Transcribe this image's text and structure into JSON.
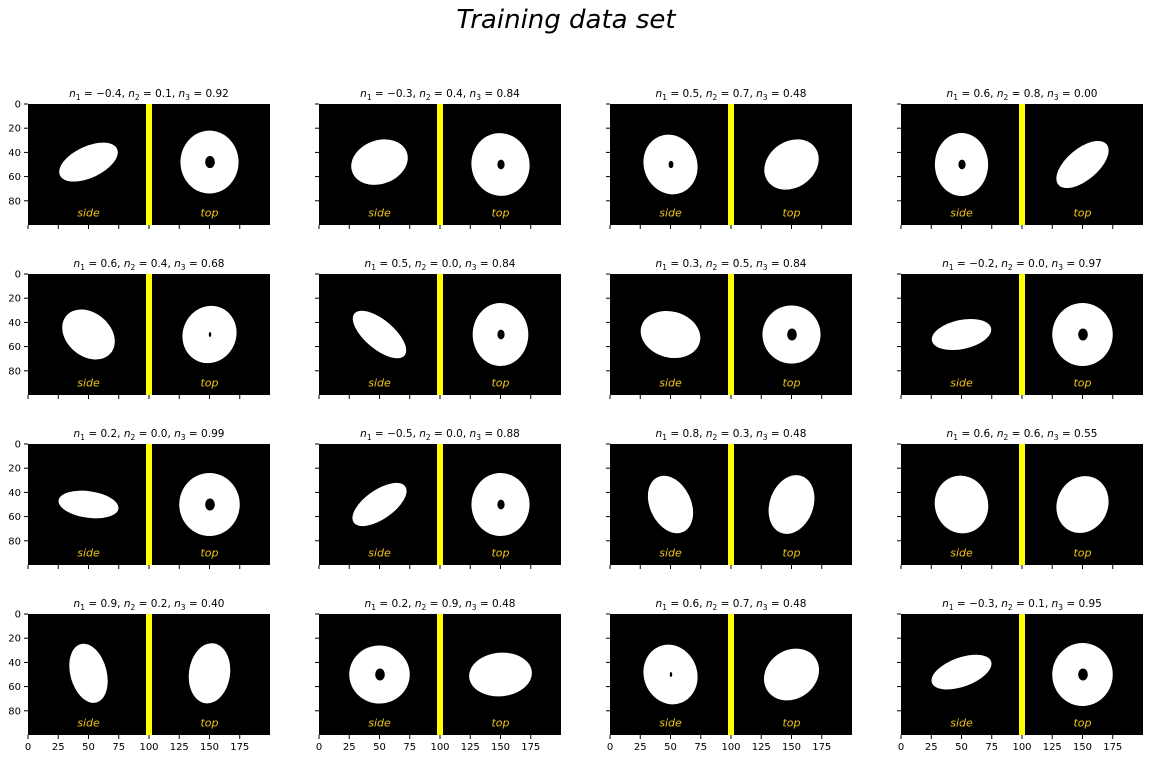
{
  "figure": {
    "suptitle": "Training data set"
  },
  "chart_data": {
    "type": "image-grid",
    "title": "Training data set",
    "rows": 4,
    "cols": 4,
    "image_width": 200,
    "image_height": 100,
    "xlim": [
      0,
      200
    ],
    "ylim": [
      100,
      0
    ],
    "xticks": [
      0,
      25,
      50,
      75,
      100,
      125,
      150,
      175
    ],
    "yticks": [
      0,
      20,
      40,
      60,
      80
    ],
    "xtick_labels_shown_on": "bottom row",
    "ytick_labels_shown_on": "left column",
    "background_color": "#000000",
    "divider": {
      "x": 100,
      "color": "#ffff00"
    },
    "annotations": {
      "left": "side",
      "right": "top",
      "color": "#f0c419"
    },
    "panels": [
      {
        "title": "$n_1 = -0.4, n_2 = 0.1, n_3 = 0.92$",
        "n1": -0.4,
        "n2": 0.1,
        "n3": 0.92,
        "side": {
          "cx": 50,
          "cy": 48,
          "rx": 26,
          "ry": 13,
          "angle": 25
        },
        "top": {
          "cx": 150,
          "cy": 48,
          "rx": 24,
          "ry": 26,
          "angle": 0,
          "hole": 4
        }
      },
      {
        "title": "$n_1 = -0.3, n_2 = 0.4, n_3 = 0.84$",
        "n1": -0.3,
        "n2": 0.4,
        "n3": 0.84,
        "side": {
          "cx": 50,
          "cy": 48,
          "rx": 24,
          "ry": 18,
          "angle": 20
        },
        "top": {
          "cx": 150,
          "cy": 50,
          "rx": 24,
          "ry": 26,
          "angle": 10,
          "hole": 3
        }
      },
      {
        "title": "$n_1 = 0.5, n_2 = 0.7, n_3 = 0.48$",
        "n1": 0.5,
        "n2": 0.7,
        "n3": 0.48,
        "side": {
          "cx": 50,
          "cy": 50,
          "rx": 22,
          "ry": 25,
          "angle": 20,
          "hole": 2
        },
        "top": {
          "cx": 150,
          "cy": 50,
          "rx": 24,
          "ry": 19,
          "angle": 35
        }
      },
      {
        "title": "$n_1 = 0.6, n_2 = 0.8, n_3 = 0.00$",
        "n1": 0.6,
        "n2": 0.8,
        "n3": 0.0,
        "side": {
          "cx": 50,
          "cy": 50,
          "rx": 22,
          "ry": 26,
          "angle": 0,
          "hole": 3
        },
        "top": {
          "cx": 150,
          "cy": 50,
          "rx": 26,
          "ry": 13,
          "angle": 40
        }
      },
      {
        "title": "$n_1 = 0.6, n_2 = 0.4, n_3 = 0.68$",
        "n1": 0.6,
        "n2": 0.4,
        "n3": 0.68,
        "side": {
          "cx": 50,
          "cy": 50,
          "rx": 24,
          "ry": 18,
          "angle": -40
        },
        "top": {
          "cx": 150,
          "cy": 50,
          "rx": 22,
          "ry": 24,
          "angle": -25,
          "hole": 1
        }
      },
      {
        "title": "$n_1 = 0.5, n_2 = 0.0, n_3 = 0.84$",
        "n1": 0.5,
        "n2": 0.0,
        "n3": 0.84,
        "side": {
          "cx": 50,
          "cy": 50,
          "rx": 27,
          "ry": 12,
          "angle": -40
        },
        "top": {
          "cx": 150,
          "cy": 50,
          "rx": 23,
          "ry": 26,
          "angle": 0,
          "hole": 3
        }
      },
      {
        "title": "$n_1 = 0.3, n_2 = 0.5, n_3 = 0.84$",
        "n1": 0.3,
        "n2": 0.5,
        "n3": 0.84,
        "side": {
          "cx": 50,
          "cy": 50,
          "rx": 25,
          "ry": 19,
          "angle": -15
        },
        "top": {
          "cx": 150,
          "cy": 50,
          "rx": 24,
          "ry": 24,
          "angle": 0,
          "hole": 4
        }
      },
      {
        "title": "$n_1 = -0.2, n_2 = 0.0, n_3 = 0.97$",
        "n1": -0.2,
        "n2": 0.0,
        "n3": 0.97,
        "side": {
          "cx": 50,
          "cy": 50,
          "rx": 25,
          "ry": 12,
          "angle": 12
        },
        "top": {
          "cx": 150,
          "cy": 50,
          "rx": 25,
          "ry": 26,
          "angle": 0,
          "hole": 4
        }
      },
      {
        "title": "$n_1 = 0.2, n_2 = 0.0, n_3 = 0.99$",
        "n1": 0.2,
        "n2": 0.0,
        "n3": 0.99,
        "side": {
          "cx": 50,
          "cy": 50,
          "rx": 25,
          "ry": 11,
          "angle": -8
        },
        "top": {
          "cx": 150,
          "cy": 50,
          "rx": 25,
          "ry": 26,
          "angle": 0,
          "hole": 4
        }
      },
      {
        "title": "$n_1 = -0.5, n_2 = 0.0, n_3 = 0.88$",
        "n1": -0.5,
        "n2": 0.0,
        "n3": 0.88,
        "side": {
          "cx": 50,
          "cy": 50,
          "rx": 26,
          "ry": 12,
          "angle": 35
        },
        "top": {
          "cx": 150,
          "cy": 50,
          "rx": 24,
          "ry": 26,
          "angle": 0,
          "hole": 3
        }
      },
      {
        "title": "$n_1 = 0.8, n_2 = 0.3, n_3 = 0.48$",
        "n1": 0.8,
        "n2": 0.3,
        "n3": 0.48,
        "side": {
          "cx": 50,
          "cy": 50,
          "rx": 17,
          "ry": 25,
          "angle": 25
        },
        "top": {
          "cx": 150,
          "cy": 50,
          "rx": 18,
          "ry": 25,
          "angle": -20
        }
      },
      {
        "title": "$n_1 = 0.6, n_2 = 0.6, n_3 = 0.55$",
        "n1": 0.6,
        "n2": 0.6,
        "n3": 0.55,
        "side": {
          "cx": 50,
          "cy": 50,
          "rx": 22,
          "ry": 24,
          "angle": 15
        },
        "top": {
          "cx": 150,
          "cy": 50,
          "rx": 21,
          "ry": 24,
          "angle": -25
        }
      },
      {
        "title": "$n_1 = 0.9, n_2 = 0.2, n_3 = 0.40$",
        "n1": 0.9,
        "n2": 0.2,
        "n3": 0.4,
        "side": {
          "cx": 50,
          "cy": 49,
          "rx": 15,
          "ry": 25,
          "angle": 15
        },
        "top": {
          "cx": 150,
          "cy": 49,
          "rx": 17,
          "ry": 25,
          "angle": -8
        }
      },
      {
        "title": "$n_1 = 0.2, n_2 = 0.9, n_3 = 0.48$",
        "n1": 0.2,
        "n2": 0.9,
        "n3": 0.48,
        "side": {
          "cx": 50,
          "cy": 50,
          "rx": 25,
          "ry": 24,
          "angle": 0,
          "hole": 4
        },
        "top": {
          "cx": 150,
          "cy": 50,
          "rx": 26,
          "ry": 18,
          "angle": 5
        }
      },
      {
        "title": "$n_1 = 0.6, n_2 = 0.7, n_3 = 0.48$",
        "n1": 0.6,
        "n2": 0.7,
        "n3": 0.48,
        "side": {
          "cx": 50,
          "cy": 50,
          "rx": 22,
          "ry": 25,
          "angle": 20,
          "hole": 1
        },
        "top": {
          "cx": 150,
          "cy": 50,
          "rx": 24,
          "ry": 20,
          "angle": 35
        }
      },
      {
        "title": "$n_1 = -0.3, n_2 = 0.1, n_3 = 0.95$",
        "n1": -0.3,
        "n2": 0.1,
        "n3": 0.95,
        "side": {
          "cx": 50,
          "cy": 48,
          "rx": 26,
          "ry": 12,
          "angle": 20
        },
        "top": {
          "cx": 150,
          "cy": 50,
          "rx": 25,
          "ry": 26,
          "angle": 0,
          "hole": 4
        }
      }
    ]
  }
}
